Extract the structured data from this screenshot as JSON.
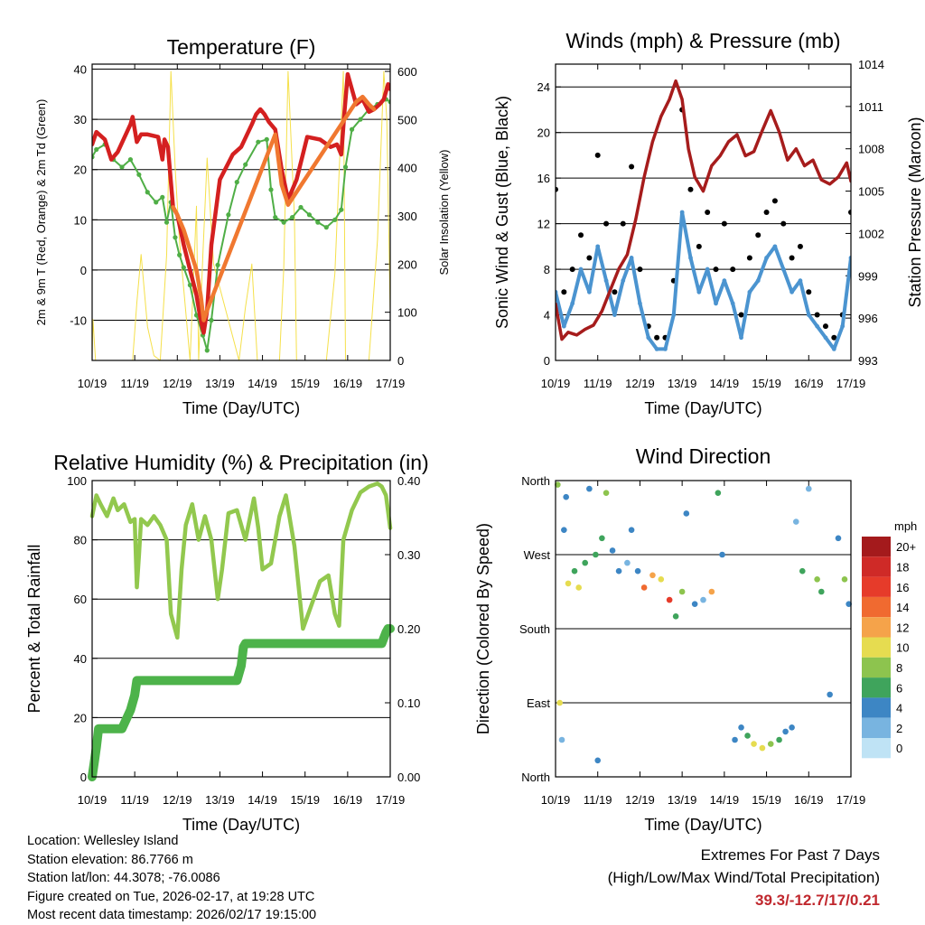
{
  "colors": {
    "temp_9m": "#d42020",
    "temp_2m": "#f07830",
    "dewpoint": "#4fae46",
    "solar": "#f5e04a",
    "wind": "#4b94d0",
    "gust": "#000000",
    "pressure": "#a61c1c",
    "rh": "#92c84e",
    "precip": "#4db34a"
  },
  "chart_data": [
    {
      "id": "temperature",
      "type": "line",
      "title": "Temperature (F)",
      "xlabel": "Time (Day/UTC)",
      "ylabel": "2m & 9m T (Red, Orange) & 2m Td (Green)",
      "y2label": "Solar Insolation (Yellow)",
      "x_range_days": [
        0,
        7
      ],
      "x_ticks": [
        "10/19",
        "11/19",
        "12/19",
        "13/19",
        "14/19",
        "15/19",
        "16/19",
        "17/19"
      ],
      "ylim": [
        -18,
        41
      ],
      "y_ticks": [
        -10,
        0,
        10,
        20,
        30,
        40
      ],
      "y2lim": [
        0,
        615
      ],
      "y2_ticks": [
        0,
        100,
        200,
        300,
        400,
        500,
        600
      ],
      "grid_lines": [
        -10,
        0,
        10,
        20,
        30,
        40
      ],
      "series": [
        {
          "name": "9m T",
          "color_key": "temp_9m",
          "x": [
            0,
            0.1,
            0.3,
            0.45,
            0.6,
            0.9,
            0.95,
            1.05,
            1.15,
            1.3,
            1.55,
            1.65,
            1.7,
            1.78,
            1.85,
            1.9,
            2.0,
            2.15,
            2.3,
            2.45,
            2.55,
            2.62,
            2.7,
            2.8,
            3.0,
            3.3,
            3.5,
            3.75,
            3.85,
            3.95,
            4.05,
            4.15,
            4.3,
            4.45,
            4.6,
            4.8,
            5.05,
            5.35,
            5.6,
            5.75,
            5.85,
            5.92,
            6.0,
            6.1,
            6.2,
            6.35,
            6.5,
            6.62,
            6.75,
            6.85,
            6.95,
            7.0
          ],
          "values": [
            25,
            27.5,
            26,
            22,
            23.5,
            29,
            30.5,
            25.5,
            27,
            27,
            26.5,
            22,
            26,
            24.5,
            17.5,
            12.5,
            11,
            5,
            0,
            -5,
            -10,
            -12.5,
            -8,
            5,
            18,
            23,
            24.5,
            29,
            31,
            32,
            31,
            29.5,
            28,
            20,
            14,
            18,
            26.5,
            26,
            24.5,
            25,
            23,
            31,
            39,
            36,
            33,
            34,
            31.5,
            32,
            33,
            34,
            37,
            36
          ]
        },
        {
          "name": "2m T",
          "color_key": "temp_2m",
          "x": [
            1.9,
            2.0,
            2.15,
            2.3,
            2.45,
            2.55,
            2.62,
            2.7,
            4.3,
            4.45,
            4.6,
            6.2,
            6.35,
            6.5,
            6.62
          ],
          "values": [
            12.5,
            11,
            8,
            4,
            0,
            -5,
            -10,
            -8,
            27,
            17,
            13,
            33.5,
            34.5,
            33,
            32
          ]
        },
        {
          "name": "2m Td",
          "color_key": "dewpoint",
          "x": [
            0,
            0.1,
            0.3,
            0.5,
            0.7,
            0.9,
            1.1,
            1.3,
            1.5,
            1.65,
            1.75,
            1.85,
            1.95,
            2.05,
            2.15,
            2.3,
            2.45,
            2.6,
            2.7,
            2.8,
            2.95,
            3.2,
            3.4,
            3.6,
            3.9,
            4.1,
            4.2,
            4.3,
            4.5,
            4.7,
            4.9,
            5.1,
            5.3,
            5.5,
            5.7,
            5.85,
            5.95,
            6.1,
            6.3,
            6.5,
            6.7,
            6.9,
            7.0
          ],
          "values": [
            22.5,
            24,
            25,
            22,
            20.5,
            22,
            19,
            15.5,
            13.5,
            14.5,
            9.5,
            13.5,
            6.5,
            3,
            0.5,
            -3,
            -9,
            -13,
            -16,
            -10,
            1,
            11,
            17.5,
            21,
            25.5,
            26,
            16,
            10.5,
            9.5,
            10.5,
            12.5,
            11,
            9.5,
            8.5,
            10,
            12,
            20.5,
            28,
            30,
            32,
            33,
            34,
            33.5
          ]
        },
        {
          "name": "Solar Insolation",
          "color_key": "solar",
          "axis": "y2",
          "x": [
            0,
            0.02,
            0.05,
            0.08,
            0.6,
            0.95,
            1.05,
            1.15,
            1.3,
            1.45,
            1.6,
            1.75,
            1.85,
            1.95,
            2.05,
            2.2,
            2.3,
            2.45,
            2.5,
            2.6,
            2.7,
            2.85,
            3.45,
            3.6,
            3.75,
            3.88,
            4.05,
            4.4,
            4.5,
            4.6,
            4.75,
            4.8,
            5.2,
            5.5,
            5.7,
            5.9,
            5.95,
            6.5,
            6.7,
            6.85,
            6.92,
            7.0
          ],
          "values": [
            10,
            85,
            40,
            0,
            0,
            0,
            120,
            220,
            70,
            10,
            0,
            220,
            600,
            400,
            250,
            100,
            0,
            320,
            0,
            220,
            420,
            200,
            0,
            110,
            200,
            0,
            0,
            0,
            190,
            600,
            300,
            0,
            0,
            0,
            180,
            600,
            0,
            0,
            250,
            600,
            500,
            100
          ]
        }
      ]
    },
    {
      "id": "winds",
      "type": "scatter",
      "title": "Winds (mph) & Pressure (mb)",
      "xlabel": "Time (Day/UTC)",
      "ylabel": "Sonic Wind & Gust (Blue, Black)",
      "y2label": "Station Pressure (Maroon)",
      "x_range_days": [
        0,
        7
      ],
      "x_ticks": [
        "10/19",
        "11/19",
        "12/19",
        "13/19",
        "14/19",
        "15/19",
        "16/19",
        "17/19"
      ],
      "ylim": [
        0,
        26
      ],
      "y_ticks": [
        0,
        4,
        8,
        12,
        16,
        20,
        24
      ],
      "y2lim": [
        993,
        1014
      ],
      "y2_ticks": [
        993,
        996,
        999,
        1002,
        1005,
        1008,
        1011,
        1014
      ],
      "grid_lines": [
        4,
        8,
        12,
        16,
        20,
        24
      ],
      "series": [
        {
          "name": "Sonic Wind",
          "color_key": "wind",
          "x": [
            0,
            0.2,
            0.4,
            0.6,
            0.8,
            1.0,
            1.2,
            1.4,
            1.6,
            1.8,
            2.0,
            2.2,
            2.4,
            2.6,
            2.8,
            3.0,
            3.2,
            3.4,
            3.6,
            3.8,
            4.0,
            4.2,
            4.4,
            4.6,
            4.8,
            5.0,
            5.2,
            5.4,
            5.6,
            5.8,
            6.0,
            6.2,
            6.4,
            6.6,
            6.8,
            7.0
          ],
          "values": [
            6,
            3,
            5,
            8,
            6,
            10,
            7,
            4,
            7,
            9,
            5,
            2,
            1,
            1,
            4,
            13,
            9,
            6,
            8,
            5,
            7,
            5,
            2,
            6,
            7,
            9,
            10,
            8,
            6,
            7,
            4,
            3,
            2,
            1,
            3,
            9
          ]
        },
        {
          "name": "Gust",
          "color_key": "gust",
          "x": [
            0,
            0.2,
            0.4,
            0.6,
            0.8,
            1.0,
            1.2,
            1.4,
            1.6,
            1.8,
            2.0,
            2.2,
            2.4,
            2.6,
            2.8,
            3.0,
            3.2,
            3.4,
            3.6,
            3.8,
            4.0,
            4.2,
            4.4,
            4.6,
            4.8,
            5.0,
            5.2,
            5.4,
            5.6,
            5.8,
            6.0,
            6.2,
            6.4,
            6.6,
            6.8,
            7.0
          ],
          "values": [
            15,
            6,
            8,
            11,
            9,
            18,
            12,
            6,
            12,
            17,
            8,
            3,
            2,
            2,
            7,
            22,
            15,
            10,
            13,
            8,
            12,
            8,
            4,
            9,
            11,
            13,
            14,
            12,
            9,
            10,
            6,
            4,
            3,
            2,
            4,
            13
          ]
        },
        {
          "name": "Station Pressure",
          "color_key": "pressure",
          "axis": "y2",
          "x": [
            0,
            0.15,
            0.3,
            0.5,
            0.7,
            0.9,
            1.1,
            1.3,
            1.5,
            1.7,
            1.9,
            2.1,
            2.3,
            2.5,
            2.7,
            2.85,
            3.0,
            3.15,
            3.3,
            3.5,
            3.7,
            3.9,
            4.1,
            4.3,
            4.5,
            4.7,
            4.9,
            5.1,
            5.3,
            5.5,
            5.7,
            5.9,
            6.1,
            6.3,
            6.5,
            6.7,
            6.9,
            7.0
          ],
          "values": [
            997,
            994.5,
            995,
            994.8,
            995.2,
            995.5,
            996.5,
            998,
            999.5,
            1000.5,
            1003,
            1006,
            1008.5,
            1010.3,
            1011.5,
            1012.8,
            1011.5,
            1008,
            1006,
            1005,
            1006.8,
            1007.5,
            1008.5,
            1009,
            1007.5,
            1007.8,
            1009.3,
            1010.7,
            1009.2,
            1007.2,
            1008,
            1006.8,
            1007.2,
            1005.8,
            1005.5,
            1006,
            1007,
            1005.7
          ]
        }
      ]
    },
    {
      "id": "humidity",
      "type": "line",
      "title": "Relative Humidity (%) & Precipitation (in)",
      "xlabel": "Time (Day/UTC)",
      "ylabel": "Percent & Total Rainfall",
      "x_range_days": [
        0,
        7
      ],
      "x_ticks": [
        "10/19",
        "11/19",
        "12/19",
        "13/19",
        "14/19",
        "15/19",
        "16/19",
        "17/19"
      ],
      "ylim": [
        0,
        100
      ],
      "y_ticks": [
        0,
        20,
        40,
        60,
        80,
        100
      ],
      "y2lim": [
        0,
        0.4
      ],
      "y2_ticks": [
        "0.00",
        "0.10",
        "0.20",
        "0.30",
        "0.40"
      ],
      "grid_lines": [
        20,
        40,
        60,
        80
      ],
      "series": [
        {
          "name": "Relative Humidity",
          "color_key": "rh",
          "x": [
            0,
            0.1,
            0.2,
            0.35,
            0.5,
            0.6,
            0.75,
            0.9,
            1.0,
            1.05,
            1.1,
            1.15,
            1.3,
            1.45,
            1.6,
            1.75,
            1.85,
            2.0,
            2.1,
            2.2,
            2.35,
            2.5,
            2.65,
            2.8,
            2.95,
            3.05,
            3.2,
            3.4,
            3.6,
            3.8,
            3.9,
            4.0,
            4.2,
            4.4,
            4.55,
            4.75,
            4.95,
            5.15,
            5.35,
            5.55,
            5.7,
            5.8,
            5.9,
            6.1,
            6.3,
            6.5,
            6.7,
            6.8,
            6.9,
            7.0
          ],
          "values": [
            88,
            95,
            92,
            88,
            94,
            90,
            92,
            86,
            87,
            64,
            75,
            87,
            85,
            88,
            85,
            80,
            55,
            47,
            70,
            85,
            92,
            80,
            88,
            80,
            60,
            70,
            89,
            90,
            80,
            94,
            84,
            70,
            72,
            88,
            95,
            78,
            50,
            58,
            66,
            68,
            55,
            51,
            80,
            90,
            96,
            98,
            99,
            98,
            95,
            84
          ]
        },
        {
          "name": "Total Precipitation",
          "color_key": "precip",
          "axis": "y2",
          "x": [
            0,
            0.05,
            0.1,
            0.15,
            0.2,
            0.7,
            0.9,
            1.0,
            1.05,
            1.1,
            3.4,
            3.5,
            3.55,
            3.6,
            6.8,
            6.9,
            6.95,
            7.0
          ],
          "values": [
            0,
            0.02,
            0.04,
            0.065,
            0.065,
            0.065,
            0.09,
            0.11,
            0.13,
            0.13,
            0.13,
            0.15,
            0.175,
            0.18,
            0.18,
            0.195,
            0.2,
            0.2
          ]
        }
      ]
    },
    {
      "id": "direction",
      "type": "scatter",
      "title": "Wind Direction",
      "xlabel": "Time (Day/UTC)",
      "ylabel": "Direction (Colored By Speed)",
      "x_range_days": [
        0,
        7
      ],
      "x_ticks": [
        "10/19",
        "11/19",
        "12/19",
        "13/19",
        "14/19",
        "15/19",
        "16/19",
        "17/19"
      ],
      "ylim": [
        0,
        360
      ],
      "y_ticks": [
        "North",
        "East",
        "South",
        "West",
        "North"
      ],
      "y_tick_values": [
        0,
        90,
        180,
        270,
        360
      ],
      "grid_lines": [
        90,
        180,
        270
      ],
      "legend_title": "mph",
      "legend_labels": [
        "20+",
        "18",
        "16",
        "14",
        "12",
        "10",
        "8",
        "6",
        "4",
        "2",
        "0"
      ],
      "legend_colors": [
        "#a41a1c",
        "#cf2a27",
        "#e63b2a",
        "#f06a30",
        "#f5a34a",
        "#e6dc50",
        "#8dc44e",
        "#3fa45c",
        "#3d86c4",
        "#78b4e0",
        "#bfe3f5"
      ],
      "x": [
        0.05,
        0.1,
        0.15,
        0.2,
        0.25,
        0.3,
        0.45,
        0.55,
        0.7,
        0.8,
        0.95,
        1.0,
        1.1,
        1.2,
        1.35,
        1.5,
        1.7,
        1.8,
        1.95,
        2.1,
        2.3,
        2.5,
        2.7,
        2.85,
        3.0,
        3.1,
        3.3,
        3.5,
        3.7,
        3.85,
        3.95,
        4.25,
        4.4,
        4.55,
        4.7,
        4.9,
        5.1,
        5.3,
        5.45,
        5.6,
        5.7,
        5.85,
        6.0,
        6.2,
        6.3,
        6.5,
        6.7,
        6.85,
        6.95
      ],
      "values": [
        355,
        90,
        45,
        300,
        340,
        235,
        250,
        230,
        260,
        350,
        270,
        20,
        290,
        345,
        275,
        250,
        260,
        300,
        250,
        230,
        245,
        240,
        215,
        195,
        225,
        320,
        210,
        215,
        225,
        345,
        270,
        45,
        60,
        50,
        40,
        35,
        40,
        45,
        55,
        60,
        310,
        250,
        350,
        240,
        225,
        100,
        290,
        240,
        210
      ],
      "speeds": [
        8,
        10,
        2,
        3,
        4,
        9,
        6,
        10,
        5,
        4,
        6,
        4,
        5,
        8,
        3,
        4,
        2,
        3,
        4,
        14,
        12,
        10,
        16,
        6,
        8,
        3,
        4,
        2,
        12,
        6,
        4,
        3,
        4,
        6,
        10,
        10,
        8,
        6,
        4,
        3,
        2,
        6,
        2,
        8,
        5,
        4,
        3,
        8,
        4
      ]
    }
  ],
  "footer": {
    "location": "Location: Wellesley Island",
    "elevation": "Station elevation: 86.7766 m",
    "latlon": "Station lat/lon: 44.3078; -76.0086",
    "created": "Figure created on Tue, 2026-02-17, at 19:28 UTC",
    "recent": "Most recent data timestamp: 2026/02/17 19:15:00"
  },
  "extremes": {
    "title": "Extremes For Past 7 Days",
    "subtitle": "(High/Low/Max Wind/Total Precipitation)",
    "values": "39.3/-12.7/17/0.21"
  }
}
